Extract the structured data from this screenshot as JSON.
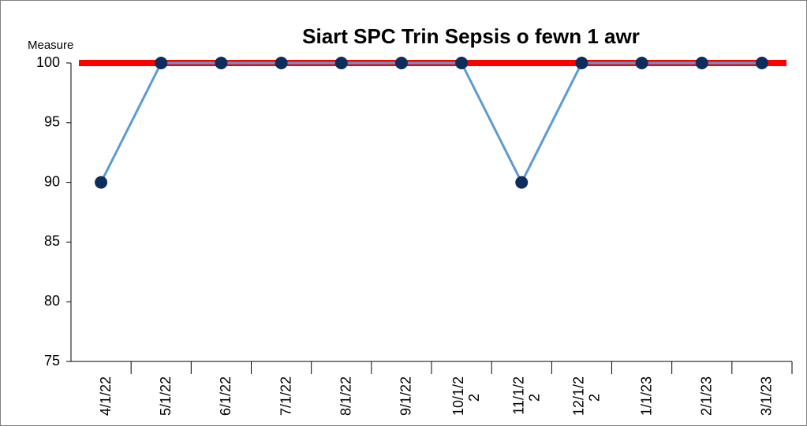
{
  "chart_data": {
    "type": "line",
    "title": "Siart SPC Trin Sepsis o fewn 1 awr",
    "y_label": "Measure",
    "categories": [
      "4/1/22",
      "5/1/22",
      "6/1/22",
      "7/1/22",
      "8/1/22",
      "9/1/22",
      "10/1/22",
      "11/1/22",
      "12/1/22",
      "1/1/23",
      "2/1/23",
      "3/1/23"
    ],
    "series": [
      {
        "name": "Measure",
        "color": "#5b9bd5",
        "marker_color": "#0f2d5c",
        "values": [
          90,
          100,
          100,
          100,
          100,
          100,
          100,
          90,
          100,
          100,
          100,
          100
        ]
      }
    ],
    "target": 100,
    "target_color": "#ff0000",
    "ylim": [
      75,
      100
    ],
    "yticks": [
      75,
      80,
      85,
      90,
      95,
      100
    ]
  }
}
